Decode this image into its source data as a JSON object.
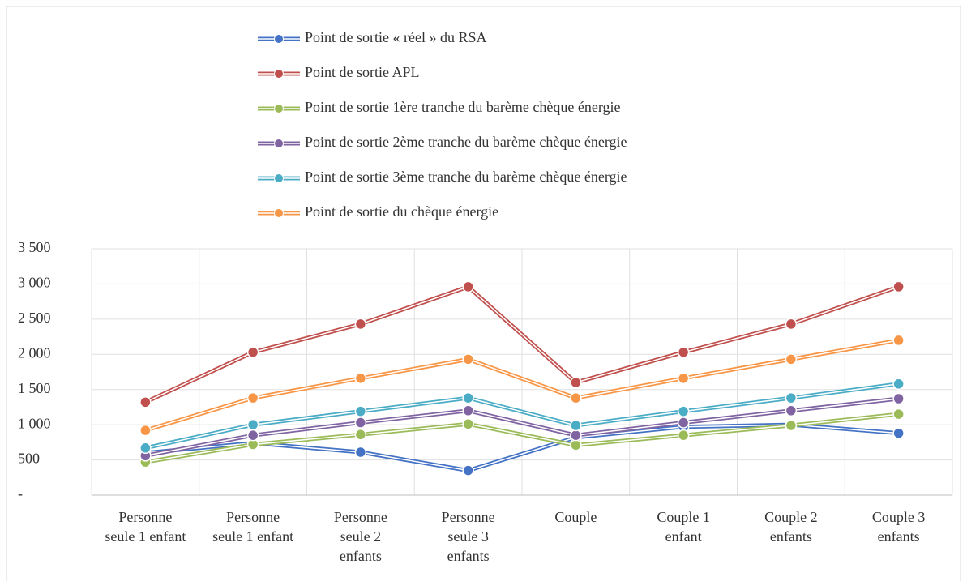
{
  "chart_data": {
    "type": "line",
    "categories": [
      "Personne seule 1 enfant",
      "Personne seule 1 enfant",
      "Personne seule 2 enfants",
      "Personne seule 3 enfants",
      "Couple",
      "Couple 1 enfant",
      "Couple 2 enfants",
      "Couple 3 enfants"
    ],
    "series": [
      {
        "name": "Point de sortie « réel » du RSA",
        "color": "#4472c4",
        "values": [
          600,
          740,
          610,
          350,
          820,
          970,
          1000,
          880
        ]
      },
      {
        "name": "Point de sortie APL",
        "color": "#c0504d",
        "values": [
          1320,
          2030,
          2430,
          2960,
          1600,
          2030,
          2430,
          2960
        ]
      },
      {
        "name": "Point de sortie 1ère tranche du barème chèque énergie",
        "color": "#9bbb59",
        "values": [
          470,
          720,
          860,
          1010,
          710,
          850,
          990,
          1150
        ]
      },
      {
        "name": "Point de sortie 2ème tranche du barème chèque énergie",
        "color": "#8064a2",
        "values": [
          560,
          850,
          1030,
          1200,
          850,
          1030,
          1200,
          1370
        ]
      },
      {
        "name": "Point de sortie 3ème tranche du barème chèque énergie",
        "color": "#4bacc6",
        "values": [
          670,
          1000,
          1190,
          1380,
          990,
          1190,
          1380,
          1580
        ]
      },
      {
        "name": "Point de sortie du chèque énergie",
        "color": "#f79646",
        "values": [
          920,
          1380,
          1660,
          1930,
          1380,
          1660,
          1930,
          2200
        ]
      }
    ],
    "ylim": [
      0,
      3500
    ],
    "yticks": [
      {
        "value": 0,
        "label": "-"
      },
      500,
      {
        "value": 1000,
        "label": "1 000"
      },
      {
        "value": 1500,
        "label": "1 500"
      },
      {
        "value": 2000,
        "label": "2 000"
      },
      {
        "value": 2500,
        "label": "2 500"
      },
      {
        "value": 3000,
        "label": "3 000"
      },
      {
        "value": 3500,
        "label": "3 500"
      }
    ],
    "grid": true,
    "legend": "top"
  }
}
